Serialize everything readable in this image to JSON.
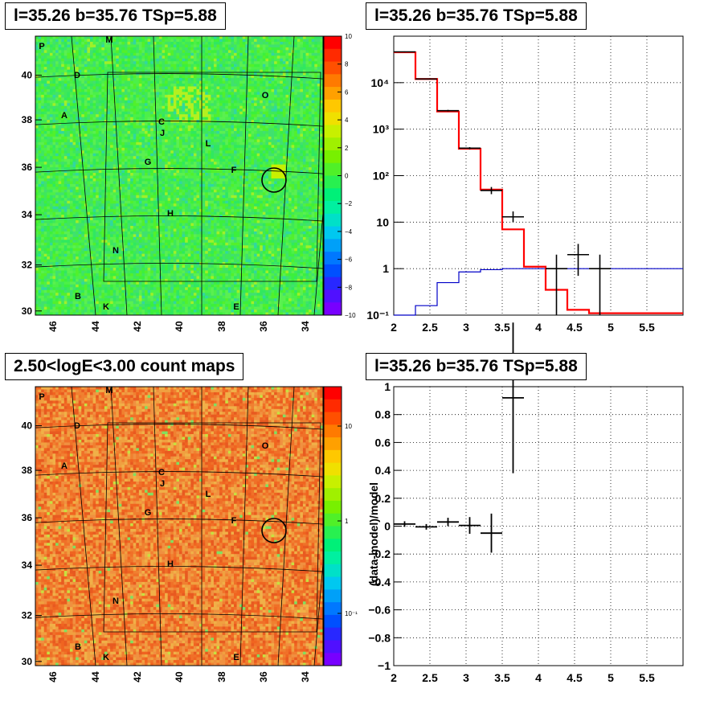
{
  "panels": {
    "top_left_title": "l=35.26 b=35.76 TSp=5.88",
    "top_right_title": "l=35.26 b=35.76 TSp=5.88",
    "bottom_left_title": "2.50<logE<3.00 count maps",
    "bottom_right_title": "l=35.26 b=35.76 TSp=5.88"
  },
  "colors": {
    "model_line": "#ff0000",
    "background_line": "#0000c8",
    "data_marker": "#000000",
    "circle": "#000000"
  },
  "chart_data": [
    {
      "type": "heatmap",
      "title": "l=35.26 b=35.76 TSp=5.88",
      "x_ticks": [
        "46",
        "44",
        "42",
        "40",
        "38",
        "36",
        "34"
      ],
      "y_ticks": [
        "30",
        "32",
        "34",
        "36",
        "38",
        "40"
      ],
      "colorbar_ticks": [
        "10",
        "8",
        "6",
        "4",
        "2",
        "0",
        "−2",
        "−4",
        "−6",
        "−8",
        "−10"
      ],
      "colorbar_range": [
        -10,
        10
      ],
      "region_labels": [
        "P",
        "M",
        "D",
        "A",
        "C",
        "J",
        "G",
        "L",
        "O",
        "F",
        "H",
        "N",
        "B",
        "K",
        "E"
      ],
      "source_circle": {
        "l": 35.26,
        "b": 35.76
      }
    },
    {
      "type": "bar",
      "title": "l=35.26 b=35.76 TSp=5.88",
      "y_scale": "log",
      "xlim": [
        2,
        6
      ],
      "ylim": [
        0.1,
        100000
      ],
      "x_ticks": [
        "2",
        "2.5",
        "3",
        "3.5",
        "4",
        "4.5",
        "5",
        "5.5"
      ],
      "y_ticks": [
        "10⁻¹",
        "1",
        "10",
        "10²",
        "10³",
        "10⁴"
      ],
      "grid": true,
      "bin_edges": [
        2.0,
        2.3,
        2.6,
        2.9,
        3.2,
        3.5,
        3.8,
        4.1,
        4.4,
        4.7,
        5.0,
        5.3,
        5.6,
        6.0
      ],
      "series": [
        {
          "values": [
            45000,
            12000,
            2400,
            380,
            50,
            7,
            1.1,
            0.35,
            0.13,
            0.11,
            0.11,
            0.11,
            0.11
          ]
        },
        {
          "values": [
            0.1,
            0.16,
            0.5,
            0.85,
            0.95,
            1.0,
            1.0,
            1.0,
            1.0,
            1.0,
            1.0,
            1.0,
            1.0
          ]
        }
      ],
      "data_points": [
        {
          "x": 2.15,
          "y": 46000,
          "ylo": 45000,
          "yhi": 47000
        },
        {
          "x": 2.45,
          "y": 12000,
          "ylo": 11800,
          "yhi": 12200
        },
        {
          "x": 2.75,
          "y": 2500,
          "ylo": 2400,
          "yhi": 2600
        },
        {
          "x": 3.05,
          "y": 390,
          "ylo": 370,
          "yhi": 410
        },
        {
          "x": 3.35,
          "y": 48,
          "ylo": 40,
          "yhi": 57
        },
        {
          "x": 3.65,
          "y": 13,
          "ylo": 10,
          "yhi": 17
        },
        {
          "x": 4.25,
          "y": 1,
          "ylo": 0.1,
          "yhi": 2
        },
        {
          "x": 4.55,
          "y": 2,
          "ylo": 0.7,
          "yhi": 3.4
        },
        {
          "x": 4.85,
          "y": 1,
          "ylo": 0.1,
          "yhi": 2
        }
      ]
    },
    {
      "type": "heatmap",
      "title": "2.50<logE<3.00 count maps",
      "x_ticks": [
        "46",
        "44",
        "42",
        "40",
        "38",
        "36",
        "34"
      ],
      "y_ticks": [
        "30",
        "32",
        "34",
        "36",
        "38",
        "40"
      ],
      "colorbar_ticks": [
        "10",
        "1",
        "10⁻¹"
      ],
      "colorbar_scale": "log",
      "region_labels": [
        "P",
        "M",
        "D",
        "A",
        "C",
        "J",
        "G",
        "L",
        "O",
        "F",
        "H",
        "N",
        "B",
        "K",
        "E"
      ],
      "source_circle": {
        "l": 35.26,
        "b": 35.76
      }
    },
    {
      "type": "scatter",
      "title": "l=35.26 b=35.76 TSp=5.88",
      "ylabel": "(data-model)/model",
      "xlim": [
        2,
        6
      ],
      "ylim": [
        -1,
        1
      ],
      "x_ticks": [
        "2",
        "2.5",
        "3",
        "3.5",
        "4",
        "4.5",
        "5",
        "5.5"
      ],
      "y_ticks": [
        "−1",
        "−0.8",
        "−0.6",
        "−0.4",
        "−0.2",
        "0",
        "0.2",
        "0.4",
        "0.6",
        "0.8",
        "1"
      ],
      "grid": true,
      "points": [
        {
          "x": 2.15,
          "xerr": 0.15,
          "y": 0.015,
          "yerr": 0.02
        },
        {
          "x": 2.45,
          "xerr": 0.15,
          "y": -0.005,
          "yerr": 0.02
        },
        {
          "x": 2.75,
          "xerr": 0.15,
          "y": 0.03,
          "yerr": 0.03
        },
        {
          "x": 3.05,
          "xerr": 0.15,
          "y": 0.005,
          "yerr": 0.06
        },
        {
          "x": 3.35,
          "xerr": 0.15,
          "y": -0.05,
          "yerr": 0.14
        },
        {
          "x": 3.65,
          "xerr": 0.15,
          "y": 0.92,
          "yerr": 0.54
        }
      ]
    }
  ]
}
